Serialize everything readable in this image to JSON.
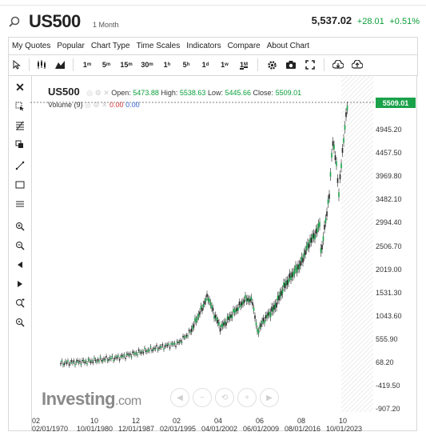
{
  "header": {
    "symbol": "US500",
    "interval": "1 Month",
    "price": "5,537.02",
    "change": "+28.01",
    "change_pct": "+0.51%"
  },
  "menu": [
    "My Quotes",
    "Popular",
    "Chart Type",
    "Time Scales",
    "Indicators",
    "Compare",
    "About Chart"
  ],
  "toolbar": {
    "intervals": [
      {
        "n": "1",
        "u": "m"
      },
      {
        "n": "5",
        "u": "m"
      },
      {
        "n": "15",
        "u": "m"
      },
      {
        "n": "30",
        "u": "m"
      },
      {
        "n": "1",
        "u": "h"
      },
      {
        "n": "5",
        "u": "h"
      },
      {
        "n": "1",
        "u": "d"
      },
      {
        "n": "1",
        "u": "w"
      },
      {
        "n": "1",
        "u": "M"
      }
    ],
    "active_interval": "1M"
  },
  "legend": {
    "symbol": "US500",
    "open_label": "Open:",
    "open": "5473.88",
    "high_label": "High:",
    "high": "5538.63",
    "low_label": "Low:",
    "low": "5445.66",
    "close_label": "Close:",
    "close": "5509.01"
  },
  "volume": {
    "label": "Volume (9)",
    "v1": "0.00",
    "v2": "0.00"
  },
  "price_tag": "5509.01",
  "y_axis": [
    "4945.20",
    "4457.50",
    "3969.80",
    "3482.10",
    "2994.40",
    "2506.70",
    "2019.00",
    "1531.30",
    "1043.60",
    "555.90",
    "68.20",
    "-419.50",
    "-907.20"
  ],
  "x_axis_top": [
    "02",
    "10",
    "12",
    "02",
    "04",
    "06",
    "08",
    "10"
  ],
  "x_axis_bottom": [
    "02/01/1970",
    "10/01/1980",
    "12/01/1987",
    "02/01/1995",
    "04/01/2002",
    "06/01/2009",
    "08/01/2016",
    "10/01/2023"
  ],
  "watermark": {
    "brand": "Investing",
    "suffix": ".com"
  },
  "colors": {
    "up": "#1aa24a",
    "down": "#222222",
    "accent": "#0a9e3a"
  }
}
